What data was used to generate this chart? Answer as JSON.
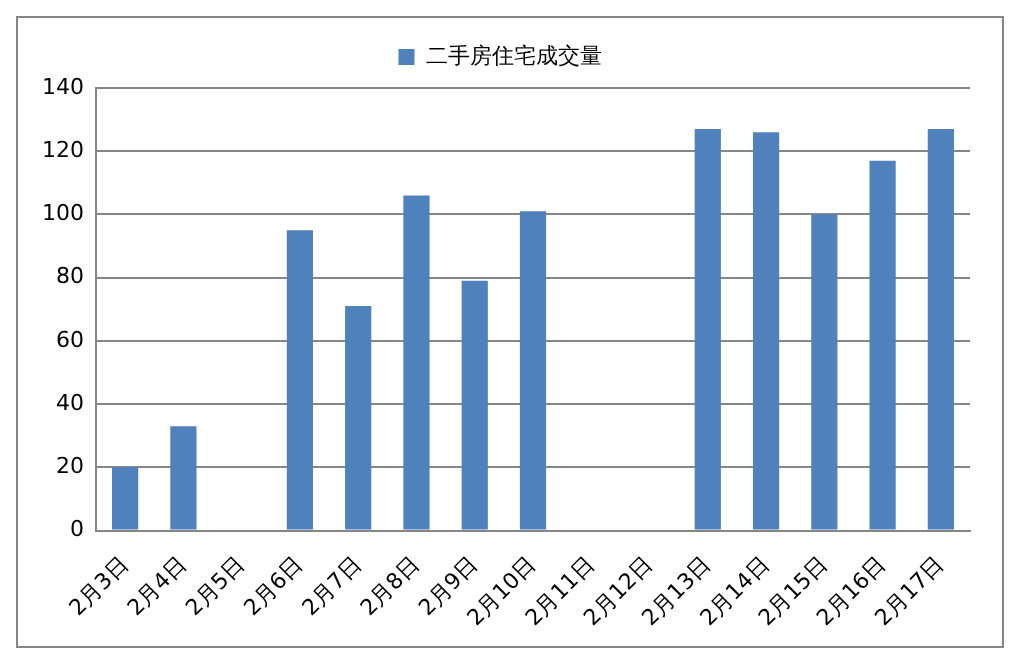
{
  "chart_data": {
    "type": "bar",
    "categories": [
      "2月3日",
      "2月4日",
      "2月5日",
      "2月6日",
      "2月7日",
      "2月8日",
      "2月9日",
      "2月10日",
      "2月11日",
      "2月12日",
      "2月13日",
      "2月14日",
      "2月15日",
      "2月16日",
      "2月17日"
    ],
    "series": [
      {
        "name": "二手房住宅成交量",
        "color": "#4f81bd",
        "values": [
          20,
          33,
          null,
          95,
          71,
          106,
          79,
          101,
          null,
          null,
          127,
          126,
          100,
          117,
          127
        ]
      }
    ],
    "ylim": [
      0,
      140
    ],
    "yticks": [
      0,
      20,
      40,
      60,
      80,
      100,
      120,
      140
    ],
    "grid": "y",
    "legend": "top"
  }
}
